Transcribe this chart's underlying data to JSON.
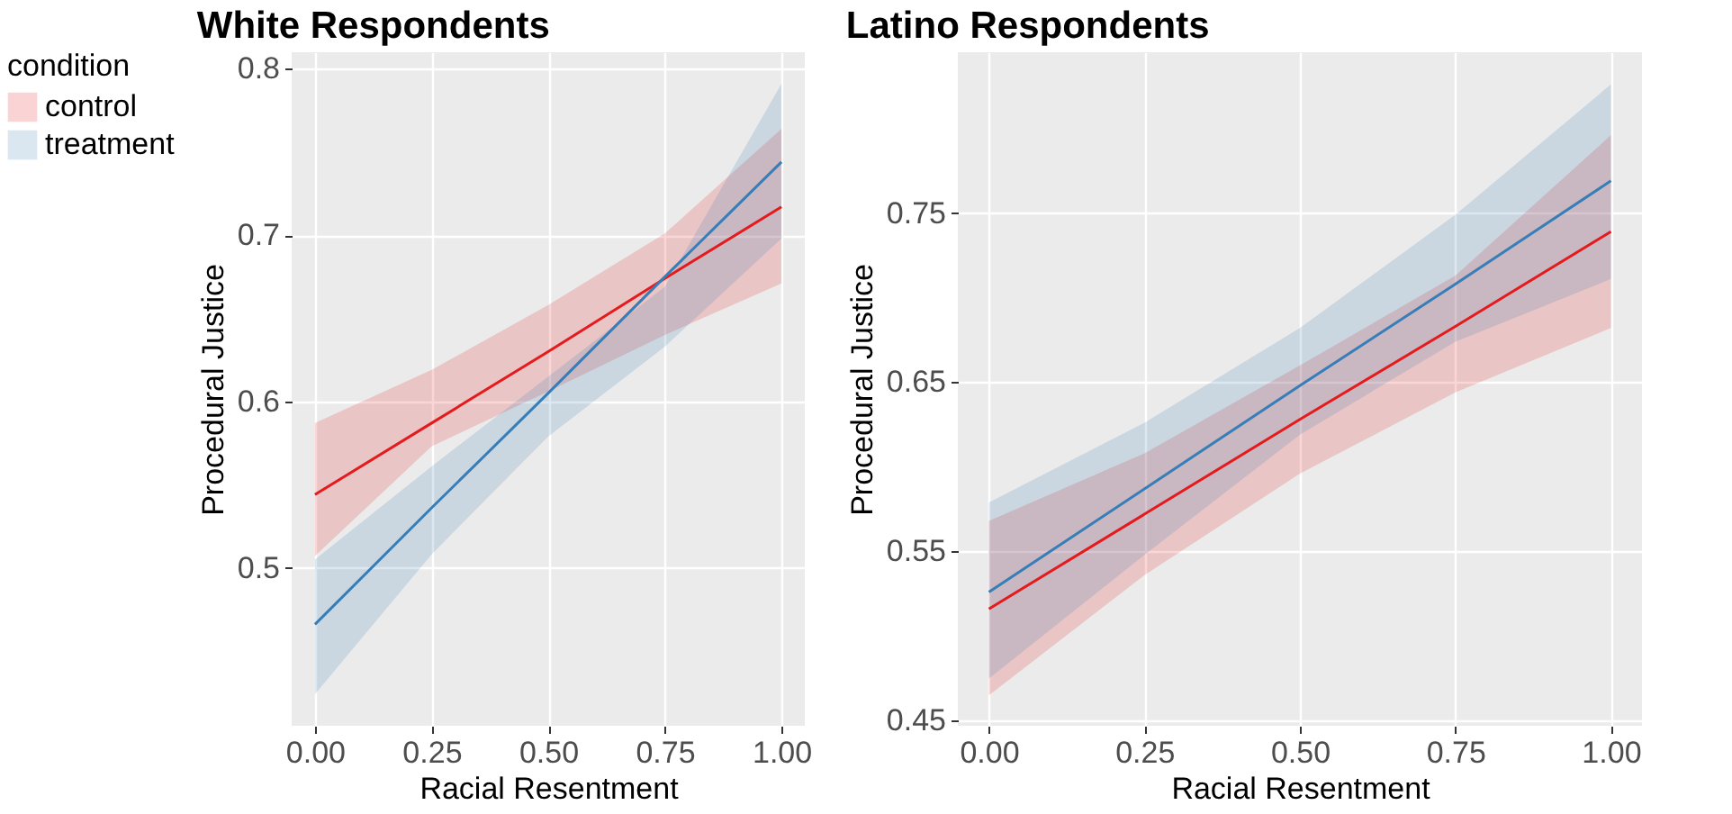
{
  "chart_data": [
    {
      "type": "line",
      "title": "White Respondents",
      "xlabel": "Racial Resentment",
      "ylabel": "Procedural Justice",
      "legend_title": "condition",
      "legend": "left",
      "grid": true,
      "xlim": [
        -0.05,
        1.05
      ],
      "ylim": [
        0.405,
        0.81
      ],
      "xticks": [
        {
          "value": 0,
          "label": "0.00"
        },
        {
          "value": 0.25,
          "label": "0.25"
        },
        {
          "value": 0.5,
          "label": "0.50"
        },
        {
          "value": 0.75,
          "label": "0.75"
        },
        {
          "value": 1,
          "label": "1.00"
        }
      ],
      "yticks": [
        0.5,
        0.6,
        0.7,
        0.8
      ],
      "series": [
        {
          "name": "control",
          "color": "#e41a1c",
          "x": [
            0,
            0.25,
            0.5,
            0.75,
            1
          ],
          "values": [
            0.544,
            0.587,
            0.63,
            0.674,
            0.717
          ],
          "lower": [
            0.507,
            0.573,
            0.606,
            0.64,
            0.671
          ],
          "upper": [
            0.587,
            0.619,
            0.658,
            0.701,
            0.764
          ]
        },
        {
          "name": "treatment",
          "color": "#377eb8",
          "x": [
            0,
            0.25,
            0.5,
            0.75,
            1
          ],
          "values": [
            0.466,
            0.536,
            0.605,
            0.675,
            0.744
          ],
          "lower": [
            0.424,
            0.508,
            0.579,
            0.633,
            0.698
          ],
          "upper": [
            0.505,
            0.561,
            0.615,
            0.669,
            0.791
          ]
        }
      ]
    },
    {
      "type": "line",
      "title": "Latino Respondents",
      "xlabel": "Racial Resentment",
      "ylabel": "Procedural Justice",
      "grid": true,
      "xlim": [
        -0.05,
        1.05
      ],
      "ylim": [
        0.447,
        0.845
      ],
      "xticks": [
        {
          "value": 0,
          "label": "0.00"
        },
        {
          "value": 0.25,
          "label": "0.25"
        },
        {
          "value": 0.5,
          "label": "0.50"
        },
        {
          "value": 0.75,
          "label": "0.75"
        },
        {
          "value": 1,
          "label": "1.00"
        }
      ],
      "yticks": [
        0.45,
        0.55,
        0.65,
        0.75
      ],
      "series": [
        {
          "name": "control",
          "color": "#e41a1c",
          "x": [
            0,
            0.25,
            0.5,
            0.75,
            1
          ],
          "values": [
            0.516,
            0.572,
            0.628,
            0.683,
            0.739
          ],
          "lower": [
            0.465,
            0.536,
            0.596,
            0.644,
            0.682
          ],
          "upper": [
            0.568,
            0.608,
            0.66,
            0.713,
            0.796
          ]
        },
        {
          "name": "treatment",
          "color": "#377eb8",
          "x": [
            0,
            0.25,
            0.5,
            0.75,
            1
          ],
          "values": [
            0.526,
            0.587,
            0.648,
            0.708,
            0.769
          ],
          "lower": [
            0.475,
            0.548,
            0.619,
            0.674,
            0.711
          ],
          "upper": [
            0.579,
            0.626,
            0.682,
            0.749,
            0.826
          ]
        }
      ]
    }
  ]
}
